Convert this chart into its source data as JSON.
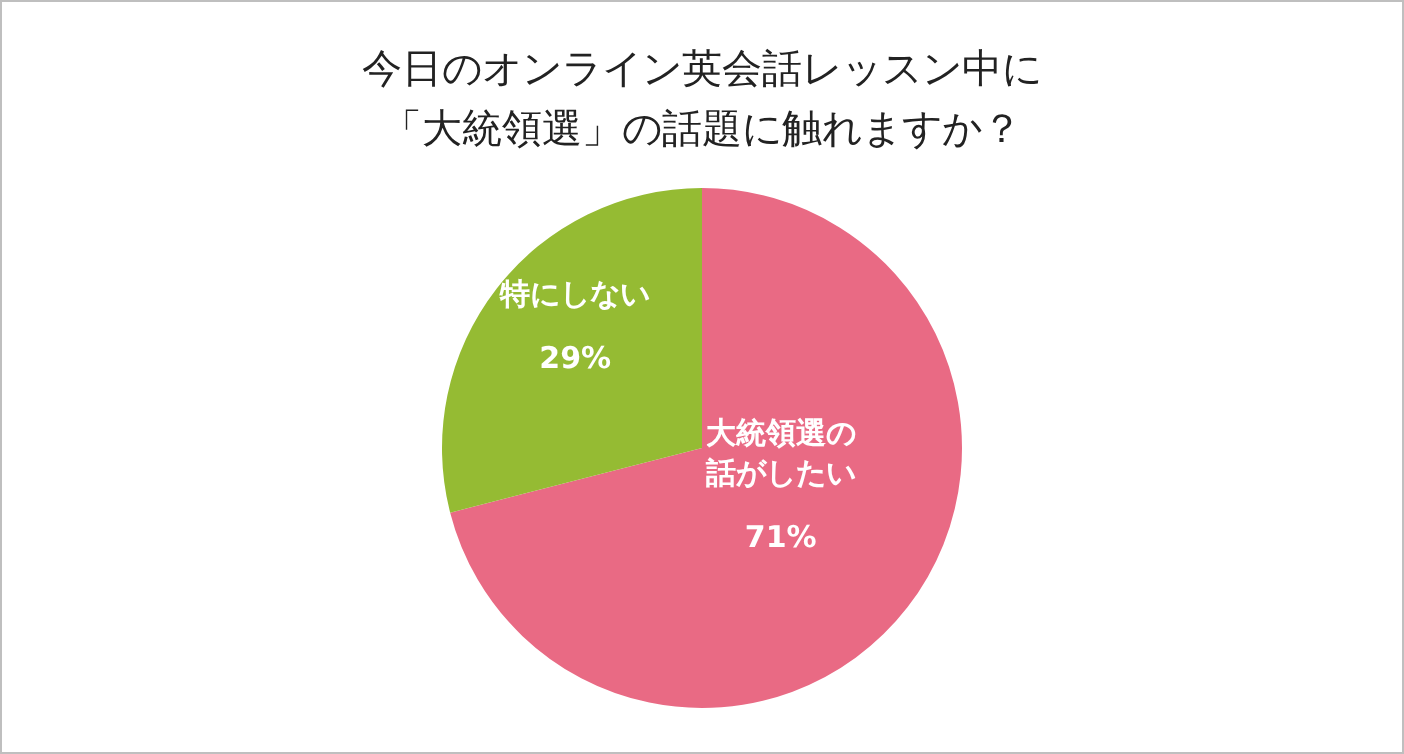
{
  "chart_data": {
    "type": "pie",
    "title": "今日のオンライン英会話レッスン中に「大統領選」の話題に触れますか？",
    "categories": [
      "大統領選の話がしたい",
      "特にしない"
    ],
    "values": [
      71,
      29
    ],
    "value_labels": [
      "71%",
      "29%"
    ],
    "colors": [
      "#e96a84",
      "#95bb33"
    ],
    "legend": false
  }
}
